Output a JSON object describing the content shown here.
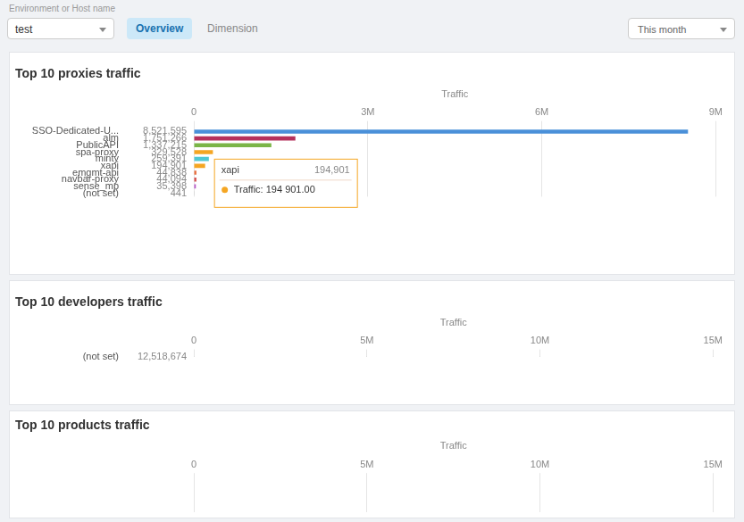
{
  "annotations": [
    "Environment or Host name",
    "test",
    "Overview",
    "Dimension",
    "This month"
  ],
  "chart_data": [
    {
      "type": "bar",
      "orientation": "horizontal",
      "title": "Top 10 proxies traffic",
      "xlabel": "Traffic",
      "categories": [
        "SSO-Dedicated-U...",
        "alm",
        "PublicAPI",
        "spa-proxy",
        "minty",
        "xapi",
        "emgmt-api",
        "navbar-proxy",
        "sense_mp",
        "(not set)"
      ],
      "values": [
        8521595,
        1751266,
        1337215,
        329528,
        259391,
        194901,
        44838,
        44094,
        35398,
        441
      ],
      "value_labels": [
        "8,521,595",
        "1,751,266",
        "1,337,215",
        "329,528",
        "259,391",
        "194,901",
        "44,838",
        "44,094",
        "35,398",
        "441"
      ],
      "data_labels": true,
      "colors": [
        "#4a90d9",
        "#b5305b",
        "#7ab547",
        "#f5a623",
        "#50c8d4",
        "#f5a623",
        "#e87040",
        "#d44e4e",
        "#b85cc8",
        "#cccccc"
      ],
      "xlim": [
        0,
        9000000
      ],
      "xticks": [
        0,
        {
          "value": 3000000,
          "label": "3M"
        },
        {
          "value": 6000000,
          "label": "6M"
        },
        {
          "value": 9000000,
          "label": "9M"
        }
      ],
      "grid": true,
      "annotations": [
        {
          "category": "xapi",
          "text": "xapi"
        },
        {
          "category": "xapi",
          "text": "194,901"
        },
        {
          "category": "xapi",
          "text": "Traffic: 194 901.00"
        }
      ]
    },
    {
      "type": "bar",
      "orientation": "horizontal",
      "title": "Top 10 developers traffic",
      "xlabel": "Traffic",
      "categories": [
        "(not set)"
      ],
      "values": [
        12518674
      ],
      "value_labels": [
        "12,518,674"
      ],
      "data_labels": true,
      "colors": [
        "#4a90d9"
      ],
      "xlim": [
        0,
        15000000
      ],
      "xticks": [
        0,
        {
          "value": 5000000,
          "label": "5M"
        },
        {
          "value": 10000000,
          "label": "10M"
        },
        {
          "value": 15000000,
          "label": "15M"
        }
      ],
      "grid": true
    },
    {
      "type": "bar",
      "orientation": "horizontal",
      "title": "Top 10 products traffic",
      "xlabel": "Traffic",
      "categories": [],
      "values": [],
      "xlim": [
        0,
        15000000
      ],
      "xticks": [
        0,
        {
          "value": 5000000,
          "label": "5M"
        },
        {
          "value": 10000000,
          "label": "10M"
        },
        {
          "value": 15000000,
          "label": "15M"
        }
      ],
      "grid": true
    }
  ]
}
